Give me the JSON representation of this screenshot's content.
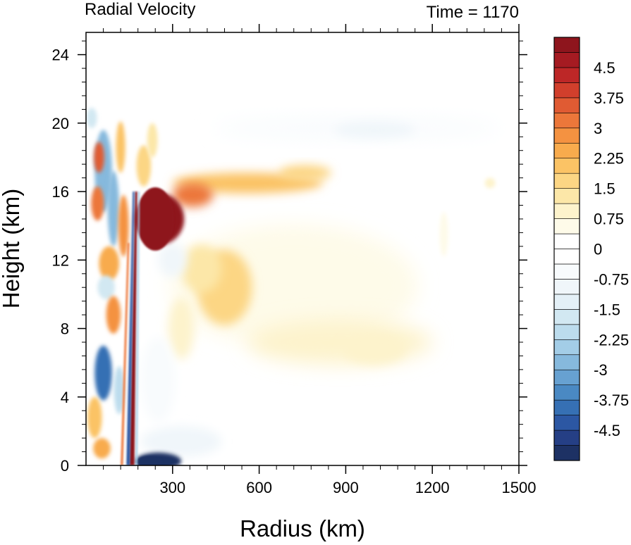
{
  "chart_data": {
    "type": "heatmap",
    "title": "Radial Velocity",
    "title_right": "Time = 1170",
    "xlabel": "Radius (km)",
    "ylabel": "Height (km)",
    "xlim": [
      0,
      1500
    ],
    "ylim": [
      0,
      25.3
    ],
    "x_ticks": [
      300,
      600,
      900,
      1200,
      1500
    ],
    "x_tick_labels": [
      "300",
      "600",
      "900",
      "1200",
      "1500"
    ],
    "y_ticks": [
      0,
      4,
      8,
      12,
      16,
      20,
      24
    ],
    "y_tick_labels": [
      "0",
      "4",
      "8",
      "12",
      "16",
      "20",
      "24"
    ],
    "grid": false,
    "colorbar": {
      "levels_min": -5.25,
      "levels_max": 5.25,
      "level_step": 0.375,
      "labels": [
        "4.5",
        "3.75",
        "3",
        "2.25",
        "1.5",
        "0.75",
        "0",
        "-0.75",
        "-1.5",
        "-2.25",
        "-3",
        "-3.75",
        "-4.5"
      ],
      "colors": [
        "#1d3164",
        "#253f85",
        "#2c57a3",
        "#3670b4",
        "#4a89c3",
        "#67a1d1",
        "#86b9dd",
        "#a3cde7",
        "#bcdced",
        "#d2e8f2",
        "#e4f0f7",
        "#f0f6fa",
        "#f8fbfd",
        "#ffffff",
        "#ffffff",
        "#fefbe9",
        "#fdf3cc",
        "#fce7a8",
        "#fcd684",
        "#fbc365",
        "#f8ab4d",
        "#f49241",
        "#ec773a",
        "#e05b33",
        "#d13f2c",
        "#bd2727",
        "#a51b22",
        "#8e151d"
      ]
    },
    "features": [
      {
        "x": 175,
        "y0": 0,
        "y1": 16,
        "value": 5.25
      },
      {
        "x": 165,
        "y0": 0,
        "y1": 16,
        "value": -4.5
      },
      {
        "x0": 175,
        "x1": 370,
        "y0": 12.5,
        "y1": 16.2,
        "value": 5.25
      },
      {
        "x0": 280,
        "x1": 850,
        "y0": 15.2,
        "y1": 17.6,
        "value": 2.6
      },
      {
        "x0": 250,
        "x1": 1150,
        "y0": 6.2,
        "y1": 15,
        "value": 0.7
      },
      {
        "x0": 430,
        "x1": 560,
        "y0": 9,
        "y1": 12.2,
        "value": 1.7
      },
      {
        "x0": 450,
        "x1": 1450,
        "y0": 19,
        "y1": 20.4,
        "value": -0.6
      },
      {
        "x0": 200,
        "x1": 1100,
        "y0": 0.2,
        "y1": 5,
        "value": -0.45
      },
      {
        "x0": 180,
        "x1": 330,
        "y0": 0,
        "y1": 0.7,
        "value": -5.25
      },
      {
        "x0": 30,
        "x1": 90,
        "y0": 4,
        "y1": 7,
        "value": -4
      }
    ]
  }
}
